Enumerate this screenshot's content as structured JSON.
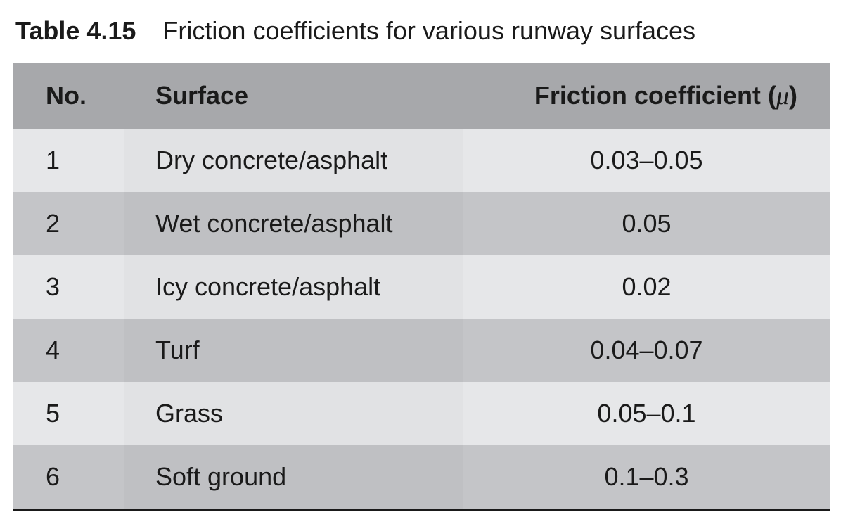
{
  "caption": {
    "label": "Table 4.15",
    "title": "Friction coefficients for various runway surfaces"
  },
  "table": {
    "headers": {
      "no": "No.",
      "surface": "Surface",
      "coef_text": "Friction coefficient (",
      "coef_symbol": "μ",
      "coef_close": ")"
    },
    "rows": [
      {
        "no": "1",
        "surface": "Dry concrete/asphalt",
        "coef": "0.03–0.05"
      },
      {
        "no": "2",
        "surface": "Wet concrete/asphalt",
        "coef": "0.05"
      },
      {
        "no": "3",
        "surface": "Icy concrete/asphalt",
        "coef": "0.02"
      },
      {
        "no": "4",
        "surface": "Turf",
        "coef": "0.04–0.07"
      },
      {
        "no": "5",
        "surface": "Grass",
        "coef": "0.05–0.1"
      },
      {
        "no": "6",
        "surface": "Soft ground",
        "coef": "0.1–0.3"
      }
    ]
  }
}
